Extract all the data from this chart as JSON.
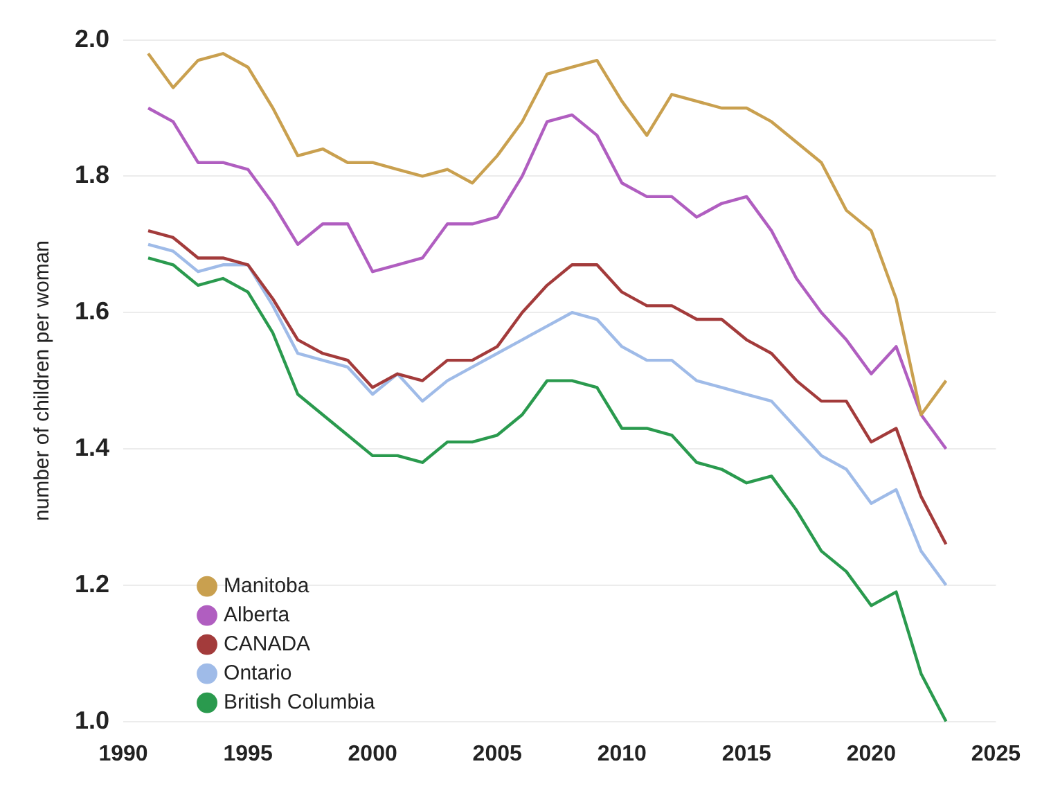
{
  "chart_data": {
    "type": "line",
    "ylabel": "number of children per woman",
    "x": [
      1991,
      1992,
      1993,
      1994,
      1995,
      1996,
      1997,
      1998,
      1999,
      2000,
      2001,
      2002,
      2003,
      2004,
      2005,
      2006,
      2007,
      2008,
      2009,
      2010,
      2011,
      2012,
      2013,
      2014,
      2015,
      2016,
      2017,
      2018,
      2019,
      2020,
      2021,
      2022,
      2023
    ],
    "series": [
      {
        "name": "Manitoba",
        "color": "#c9a04f",
        "values": [
          1.98,
          1.93,
          1.97,
          1.98,
          1.96,
          1.9,
          1.83,
          1.84,
          1.82,
          1.82,
          1.81,
          1.8,
          1.81,
          1.79,
          1.83,
          1.88,
          1.95,
          1.96,
          1.97,
          1.91,
          1.86,
          1.92,
          1.91,
          1.9,
          1.9,
          1.88,
          1.85,
          1.82,
          1.75,
          1.72,
          1.62,
          1.45,
          1.5
        ]
      },
      {
        "name": "Alberta",
        "color": "#b05ec0",
        "values": [
          1.9,
          1.88,
          1.82,
          1.82,
          1.81,
          1.76,
          1.7,
          1.73,
          1.73,
          1.66,
          1.67,
          1.68,
          1.73,
          1.73,
          1.74,
          1.8,
          1.88,
          1.89,
          1.86,
          1.79,
          1.77,
          1.77,
          1.74,
          1.76,
          1.77,
          1.72,
          1.65,
          1.6,
          1.56,
          1.51,
          1.55,
          1.45,
          1.4
        ]
      },
      {
        "name": "CANADA",
        "color": "#a33b3b",
        "values": [
          1.72,
          1.71,
          1.68,
          1.68,
          1.67,
          1.62,
          1.56,
          1.54,
          1.53,
          1.49,
          1.51,
          1.5,
          1.53,
          1.53,
          1.55,
          1.6,
          1.64,
          1.67,
          1.67,
          1.63,
          1.61,
          1.61,
          1.59,
          1.59,
          1.56,
          1.54,
          1.5,
          1.47,
          1.47,
          1.41,
          1.43,
          1.33,
          1.26
        ]
      },
      {
        "name": "Ontario",
        "color": "#9fbbe8",
        "values": [
          1.7,
          1.69,
          1.66,
          1.67,
          1.67,
          1.61,
          1.54,
          1.53,
          1.52,
          1.48,
          1.51,
          1.47,
          1.5,
          1.52,
          1.54,
          1.56,
          1.58,
          1.6,
          1.59,
          1.55,
          1.53,
          1.53,
          1.5,
          1.49,
          1.48,
          1.47,
          1.43,
          1.39,
          1.37,
          1.32,
          1.34,
          1.25,
          1.2
        ]
      },
      {
        "name": "British Columbia",
        "color": "#2a9a4e",
        "values": [
          1.68,
          1.67,
          1.64,
          1.65,
          1.63,
          1.57,
          1.48,
          1.45,
          1.42,
          1.39,
          1.39,
          1.38,
          1.41,
          1.41,
          1.42,
          1.45,
          1.5,
          1.5,
          1.49,
          1.43,
          1.43,
          1.42,
          1.38,
          1.37,
          1.35,
          1.36,
          1.31,
          1.25,
          1.22,
          1.17,
          1.19,
          1.07,
          1.0
        ]
      }
    ],
    "xlim": [
      1990,
      2025
    ],
    "xticks": [
      1990,
      1995,
      2000,
      2005,
      2010,
      2015,
      2020,
      2025
    ],
    "ylim": [
      1,
      2
    ],
    "yticks": [
      {
        "value": 1,
        "label": "1.0"
      },
      1.2,
      1.4,
      1.6,
      1.8,
      {
        "value": 2,
        "label": "2.0"
      }
    ],
    "grid": "y",
    "legend": "bottom left",
    "marker": "none",
    "line_style": "solid"
  }
}
